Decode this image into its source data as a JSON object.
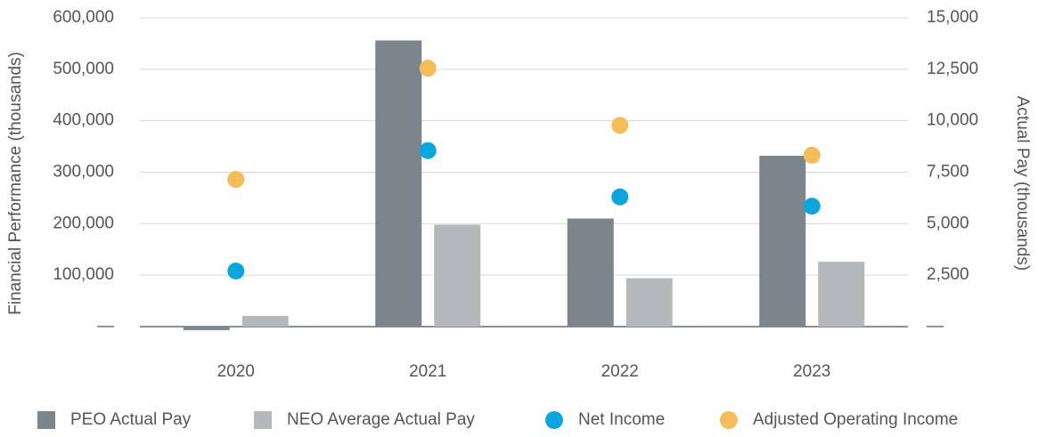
{
  "chart_data": {
    "type": "bar",
    "ylabel": "Financial Performance (thousands)",
    "y2label": "Actual Pay (thousands)",
    "categories": [
      "2020",
      "2021",
      "2022",
      "2023"
    ],
    "ylim": [
      -45000,
      600000
    ],
    "yticks": [
      {
        "value": 0,
        "label": "—"
      },
      {
        "value": 100000,
        "label": "100,000"
      },
      {
        "value": 200000,
        "label": "200,000"
      },
      {
        "value": 300000,
        "label": "300,000"
      },
      {
        "value": 400000,
        "label": "400,000"
      },
      {
        "value": 500000,
        "label": "500,000"
      },
      {
        "value": 600000,
        "label": "600,000"
      }
    ],
    "y2lim": [
      -1125,
      15000
    ],
    "y2ticks": [
      {
        "value": 0,
        "label": "—"
      },
      {
        "value": 2500,
        "label": "2,500"
      },
      {
        "value": 5000,
        "label": "5,000"
      },
      {
        "value": 7500,
        "label": "7,500"
      },
      {
        "value": 10000,
        "label": "10,000"
      },
      {
        "value": 12500,
        "label": "12,500"
      },
      {
        "value": 15000,
        "label": "15,000"
      }
    ],
    "grid": true,
    "legend": "bottom",
    "series": [
      {
        "name": "PEO Actual Pay",
        "type": "bar",
        "axis": "y2",
        "color": "#7b858b",
        "values": [
          -170,
          13900,
          5250,
          8300
        ]
      },
      {
        "name": "NEO Average Actual Pay",
        "type": "bar",
        "axis": "y2",
        "color": "#b5b8bb",
        "values": [
          520,
          4950,
          2350,
          3150
        ]
      },
      {
        "name": "Net Income",
        "type": "scatter",
        "axis": "y",
        "color": "#0ba5e0",
        "values": [
          108000,
          342000,
          252000,
          234000
        ]
      },
      {
        "name": "Adjusted Operating Income",
        "type": "scatter",
        "axis": "y",
        "color": "#f4bd57",
        "values": [
          286000,
          502000,
          391000,
          333000
        ]
      }
    ]
  }
}
